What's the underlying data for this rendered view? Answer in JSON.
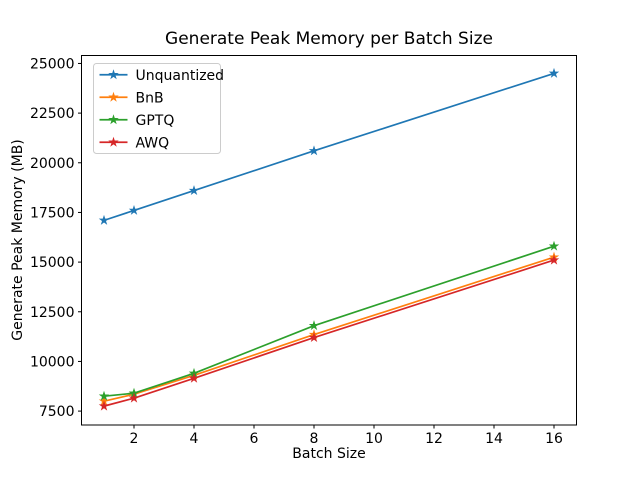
{
  "chart_data": {
    "type": "line",
    "title": "Generate Peak Memory per Batch Size",
    "xlabel": "Batch Size",
    "ylabel": "Generate Peak Memory (MB)",
    "x": [
      1,
      2,
      4,
      8,
      16
    ],
    "series": [
      {
        "name": "Unquantized",
        "color": "#1f77b4",
        "values": [
          17100,
          17600,
          18600,
          20600,
          24500
        ]
      },
      {
        "name": "BnB",
        "color": "#ff7f0e",
        "values": [
          8000,
          8350,
          9300,
          11350,
          15250
        ]
      },
      {
        "name": "GPTQ",
        "color": "#2ca02c",
        "values": [
          8250,
          8400,
          9400,
          11800,
          15800
        ]
      },
      {
        "name": "AWQ",
        "color": "#d62728",
        "values": [
          7750,
          8150,
          9150,
          11200,
          15100
        ]
      }
    ],
    "marker": "star",
    "xticks": [
      2,
      4,
      6,
      8,
      10,
      12,
      14,
      16
    ],
    "yticks": [
      7500,
      10000,
      12500,
      15000,
      17500,
      20000,
      22500,
      25000
    ],
    "xlim": [
      0.25,
      16.75
    ],
    "ylim": [
      6800,
      25400
    ],
    "grid": false,
    "legend_position": "upper left",
    "spine_color": "#000000",
    "legend_edge_color": "#cccccc",
    "background": "#ffffff"
  }
}
